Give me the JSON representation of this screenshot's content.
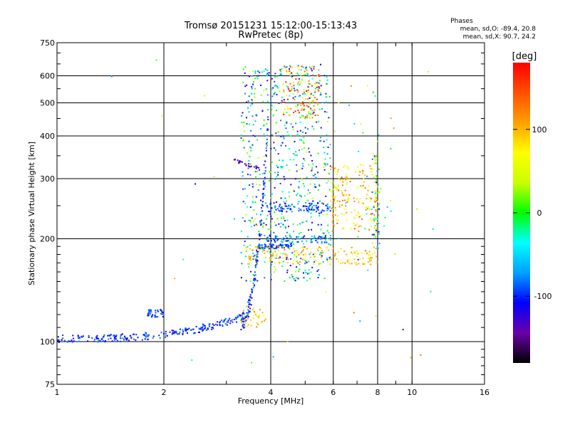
{
  "chart_data": {
    "type": "scatter",
    "title": "Tromsø 20151231 15:12:00-15:13:43",
    "subtitle": "RwPretec (8p)",
    "xlabel": "Frequency [MHz]",
    "ylabel": "Stationary phase Virtual Height [km]",
    "xscale": "log",
    "yscale": "log",
    "xlim": [
      1,
      16
    ],
    "ylim": [
      75,
      750
    ],
    "xticks": [
      {
        "value": 1,
        "label": "1"
      },
      {
        "value": 2,
        "label": "2"
      },
      {
        "value": 4,
        "label": "4"
      },
      {
        "value": 6,
        "label": "6"
      },
      {
        "value": 8,
        "label": "8"
      },
      {
        "value": 10,
        "label": "10"
      },
      {
        "value": 16,
        "label": "16"
      }
    ],
    "yticks": [
      {
        "value": 75,
        "label": "75"
      },
      {
        "value": 100,
        "label": "100"
      },
      {
        "value": 200,
        "label": "200"
      },
      {
        "value": 300,
        "label": "300"
      },
      {
        "value": 400,
        "label": "400"
      },
      {
        "value": 500,
        "label": "500"
      },
      {
        "value": 600,
        "label": "600"
      },
      {
        "value": 750,
        "label": "750"
      }
    ],
    "grid": true,
    "stats": {
      "heading": "Phases",
      "line_o": "mean, sd,O: -89.4, 20.8",
      "line_x": "mean, sd,X:  90.7, 24.2"
    },
    "colorbar": {
      "label": "[deg]",
      "range": [
        -180,
        180
      ],
      "ticks": [
        {
          "value": 100,
          "label": "100"
        },
        {
          "value": 0,
          "label": "0"
        },
        {
          "value": -100,
          "label": "-100"
        }
      ],
      "stops": [
        "#000000",
        "#6a00a8",
        "#0000ff",
        "#00a0ff",
        "#00ffff",
        "#00ff00",
        "#c8ff00",
        "#ffff00",
        "#ffa000",
        "#ff5000",
        "#ff0000"
      ]
    },
    "clusters": [
      {
        "name": "lower trace",
        "n": 240,
        "f": [
          1.0,
          3.3
        ],
        "h": [
          102,
          118
        ],
        "h_rise": "quadratic",
        "phase": [
          -125,
          -75
        ]
      },
      {
        "name": "O trace rising",
        "n": 160,
        "f": [
          3.3,
          3.95
        ],
        "h": [
          115,
          470
        ],
        "h_rise": "steep",
        "phase": [
          -120,
          -70
        ]
      },
      {
        "name": "descending streak",
        "n": 30,
        "f": [
          3.15,
          3.75
        ],
        "h": [
          340,
          320
        ],
        "phase": [
          -150,
          -120
        ]
      },
      {
        "name": "spread F",
        "n": 700,
        "f": [
          3.3,
          5.9
        ],
        "h": [
          150,
          650
        ],
        "phase": [
          -140,
          40
        ]
      },
      {
        "name": "upper warm",
        "n": 120,
        "f": [
          4.3,
          5.5
        ],
        "h": [
          450,
          640
        ],
        "phase": [
          40,
          180
        ]
      },
      {
        "name": "band 250",
        "n": 90,
        "f": [
          3.9,
          5.9
        ],
        "h": [
          240,
          255
        ],
        "phase": [
          -120,
          -60
        ]
      },
      {
        "name": "band 200",
        "n": 70,
        "f": [
          3.9,
          5.9
        ],
        "h": [
          195,
          205
        ],
        "phase": [
          -110,
          -50
        ]
      },
      {
        "name": "band 190",
        "n": 60,
        "f": [
          3.7,
          4.6
        ],
        "h": [
          187,
          193
        ],
        "phase": [
          -110,
          -70
        ]
      },
      {
        "name": "yellow layer",
        "n": 170,
        "f": [
          3.4,
          8.0
        ],
        "h": [
          168,
          190
        ],
        "phase": [
          60,
          120
        ]
      },
      {
        "name": "yellow low",
        "n": 40,
        "f": [
          3.3,
          3.9
        ],
        "h": [
          110,
          128
        ],
        "phase": [
          60,
          120
        ]
      },
      {
        "name": "X trace",
        "n": 180,
        "f": [
          5.9,
          8.0
        ],
        "h": [
          210,
          330
        ],
        "phase": [
          40,
          140
        ]
      },
      {
        "name": "X vertical",
        "n": 60,
        "f": [
          7.7,
          8.1
        ],
        "h": [
          180,
          360
        ],
        "phase": [
          -110,
          80
        ]
      },
      {
        "name": "scattered high freq",
        "n": 40,
        "f": [
          6.0,
          9.0
        ],
        "h": [
          150,
          580
        ],
        "phase": [
          -100,
          120
        ]
      },
      {
        "name": "low mid trace",
        "n": 40,
        "f": [
          1.8,
          2.0
        ],
        "h": [
          118,
          124
        ],
        "phase": [
          -110,
          -80
        ]
      },
      {
        "name": "outliers",
        "n": 24,
        "f": [
          1.4,
          12.5
        ],
        "h": [
          85,
          680
        ],
        "phase": [
          -120,
          140
        ]
      }
    ]
  }
}
